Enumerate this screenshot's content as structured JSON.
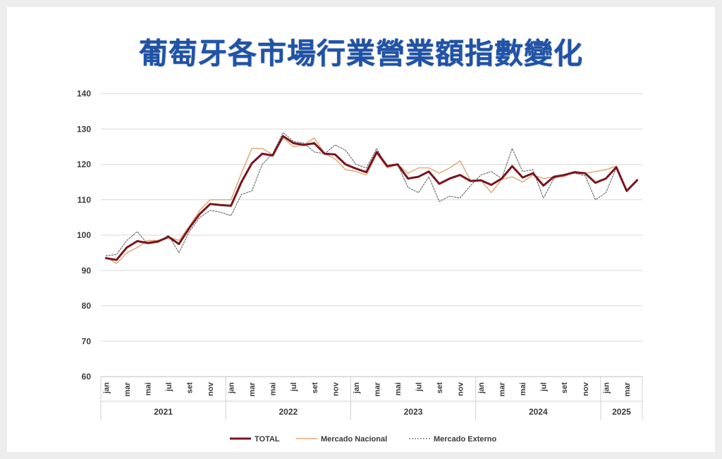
{
  "title": "葡萄牙各市場行業營業額指數變化",
  "chart_data": {
    "type": "line",
    "ylim": [
      60,
      140
    ],
    "yticks": [
      60,
      70,
      80,
      90,
      100,
      110,
      120,
      130,
      140
    ],
    "month_labels": [
      "jan",
      "mar",
      "mai",
      "jul",
      "set",
      "nov",
      "jan",
      "mar",
      "mai",
      "jul",
      "set",
      "nov",
      "jan",
      "mar",
      "mai",
      "jul",
      "set",
      "nov",
      "jan",
      "mar",
      "mai",
      "jul",
      "set",
      "nov",
      "jan",
      "mar"
    ],
    "years": [
      {
        "label": "2021",
        "months": 12
      },
      {
        "label": "2022",
        "months": 12
      },
      {
        "label": "2023",
        "months": 12
      },
      {
        "label": "2024",
        "months": 12
      },
      {
        "label": "2025",
        "months": 4
      }
    ],
    "colors": {
      "TOTAL": "#7a1420",
      "Mercado Nacional": "#e0aa78",
      "Mercado Externo": "#6e6e6e",
      "grid": "#d9d9d9"
    },
    "series": [
      {
        "name": "TOTAL",
        "values": [
          93.5,
          93,
          96.5,
          98.3,
          97.8,
          98.2,
          99.5,
          97.5,
          102,
          106,
          108.8,
          108.5,
          108.3,
          115,
          120.3,
          123,
          122.5,
          128,
          126,
          125.5,
          126,
          123,
          122.8,
          120,
          118.8,
          117.8,
          123.5,
          119.5,
          120,
          116,
          116.5,
          118,
          114.5,
          116,
          117,
          115.3,
          115.5,
          114.2,
          116,
          119.5,
          116.3,
          117.5,
          114,
          116.5,
          117,
          117.8,
          117.5,
          114.8,
          116,
          119.2,
          112.5,
          115.5
        ]
      },
      {
        "name": "Mercado Nacional",
        "values": [
          93.8,
          92,
          95,
          96.5,
          98.5,
          98.5,
          99.5,
          98.5,
          102.5,
          107,
          110,
          110,
          110,
          117.5,
          124.5,
          124.5,
          122.8,
          127.5,
          125,
          125.5,
          127.5,
          123,
          121.5,
          118.5,
          118,
          117,
          123,
          119,
          120,
          117.5,
          119,
          119,
          117.5,
          119,
          121,
          115.5,
          115.5,
          112,
          115.8,
          116.5,
          115,
          117,
          116,
          116.5,
          116.5,
          118,
          117.5,
          118,
          118.5,
          119.5,
          112.3,
          115.8
        ]
      },
      {
        "name": "Mercado Externo",
        "values": [
          94.2,
          94.5,
          98.5,
          101,
          97.5,
          98,
          100,
          95,
          101,
          105,
          107,
          106.5,
          105.5,
          111.5,
          112.5,
          120,
          123,
          129,
          126.5,
          126,
          123.5,
          123,
          125.5,
          124,
          120,
          119,
          124.5,
          119,
          120,
          113.5,
          112,
          116.5,
          109.5,
          111,
          110.5,
          114,
          117,
          118,
          116,
          124.5,
          118,
          118.5,
          110.5,
          116,
          117,
          117.5,
          116.8,
          110,
          112,
          119,
          112.3,
          115.5
        ]
      }
    ]
  },
  "legend": [
    {
      "label": "TOTAL"
    },
    {
      "label": "Mercado Nacional"
    },
    {
      "label": "Mercado Externo"
    }
  ]
}
